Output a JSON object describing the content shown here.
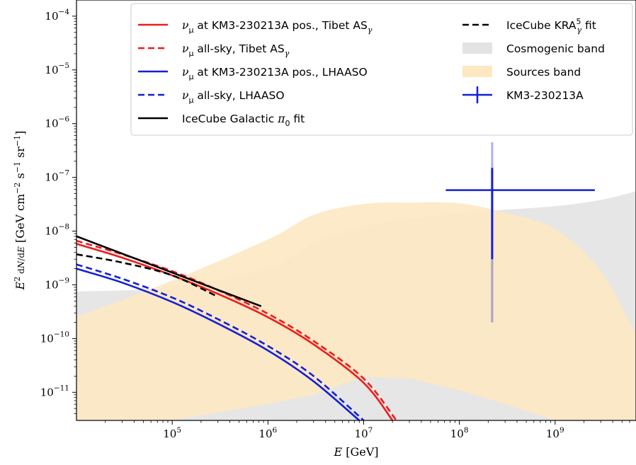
{
  "chart_data": {
    "type": "line",
    "x_scale": "log",
    "y_scale": "log",
    "xlim": [
      10000,
      7000000000
    ],
    "ylim": [
      3e-12,
      0.0002
    ],
    "xlabel": "E [GeV]",
    "ylabel": "E² dN/dE [GeV cm⁻² s⁻¹ sr⁻¹]",
    "x_ticks": [
      {
        "value": 100000,
        "label": "10",
        "exp": "5"
      },
      {
        "value": 1000000,
        "label": "10",
        "exp": "6"
      },
      {
        "value": 10000000,
        "label": "10",
        "exp": "7"
      },
      {
        "value": 100000000,
        "label": "10",
        "exp": "8"
      },
      {
        "value": 1000000000,
        "label": "10",
        "exp": "9"
      }
    ],
    "y_ticks": [
      {
        "value": 1e-11,
        "label": "10",
        "exp": "−11"
      },
      {
        "value": 1e-10,
        "label": "10",
        "exp": "−10"
      },
      {
        "value": 1e-09,
        "label": "10",
        "exp": "−9"
      },
      {
        "value": 1e-08,
        "label": "10",
        "exp": "−8"
      },
      {
        "value": 1e-07,
        "label": "10",
        "exp": "−7"
      },
      {
        "value": 1e-06,
        "label": "10",
        "exp": "−6"
      },
      {
        "value": 1e-05,
        "label": "10",
        "exp": "−5"
      },
      {
        "value": 0.0001,
        "label": "10",
        "exp": "−4"
      }
    ],
    "grid": false,
    "legend_position": "top-right",
    "bands": [
      {
        "name": "Cosmogenic band",
        "color": "#e3e3e3",
        "x": [
          10000,
          100000,
          1000000,
          3000000,
          10000000,
          30000000,
          100000000,
          300000000,
          1000000000,
          3000000000,
          7000000000
        ],
        "lower": [
          3e-12,
          3e-12,
          3e-12,
          3e-12,
          3e-12,
          3e-12,
          3e-12,
          3e-12,
          3e-12,
          3e-12,
          3e-12
        ],
        "upper": [
          7.5e-10,
          9e-10,
          2e-09,
          6e-09,
          1.2e-08,
          1.7e-08,
          2.1e-08,
          2.5e-08,
          2.9e-08,
          3.8e-08,
          5.5e-08
        ]
      },
      {
        "name": "Sources band",
        "color": "#fde8c2",
        "x": [
          10000,
          100000,
          1000000,
          3000000,
          10000000,
          30000000,
          100000000,
          300000000,
          1000000000,
          3000000000,
          7000000000
        ],
        "lower": [
          3e-12,
          3e-12,
          6e-12,
          9e-12,
          1.9e-11,
          1.8e-11,
          1.1e-11,
          6e-12,
          3e-12,
          3e-12,
          3e-12
        ],
        "upper": [
          2.5e-10,
          1.2e-09,
          7e-09,
          2e-08,
          3.2e-08,
          3.4e-08,
          3.3e-08,
          2.2e-08,
          1.1e-08,
          1.8e-09,
          1.2e-10
        ]
      }
    ],
    "series": [
      {
        "name": "νμ at KM3-230213A pos., Tibet ASγ",
        "color": "#ee1c1c",
        "dash": "solid",
        "x": [
          10000,
          30000,
          100000,
          300000,
          1000000,
          3000000,
          10000000,
          20000000
        ],
        "y": [
          5.8e-09,
          3.2e-09,
          1.5e-09,
          6.8e-10,
          2.5e-10,
          7.8e-11,
          1.5e-11,
          3e-12
        ]
      },
      {
        "name": "νμ all-sky, Tibet ASγ",
        "color": "#ee1c1c",
        "dash": "dashed",
        "x": [
          10000,
          30000,
          100000,
          300000,
          1000000,
          3000000,
          10000000,
          22000000
        ],
        "y": [
          6.6e-09,
          3.7e-09,
          1.8e-09,
          8e-10,
          2.9e-10,
          9e-11,
          1.8e-11,
          3e-12
        ]
      },
      {
        "name": "νμ at KM3-230213A pos., LHAASO",
        "color": "#1420d6",
        "dash": "solid",
        "x": [
          10000,
          30000,
          100000,
          300000,
          1000000,
          3000000,
          9000000
        ],
        "y": [
          2e-09,
          1.1e-09,
          4.8e-10,
          1.9e-10,
          6e-11,
          1.6e-11,
          3e-12
        ]
      },
      {
        "name": "νμ all-sky, LHAASO",
        "color": "#1420d6",
        "dash": "dashed",
        "x": [
          10000,
          30000,
          100000,
          300000,
          1000000,
          3000000,
          10000000
        ],
        "y": [
          2.4e-09,
          1.3e-09,
          5.8e-10,
          2.3e-10,
          7.3e-11,
          2e-11,
          3e-12
        ]
      },
      {
        "name": "IceCube Galactic π0 fit",
        "color": "#000000",
        "dash": "solid",
        "x": [
          10000,
          850000
        ],
        "y": [
          8e-09,
          4e-10
        ]
      },
      {
        "name": "IceCube KRA⁵γ fit",
        "color": "#000000",
        "dash": "dashed",
        "x": [
          10000,
          30000,
          100000,
          300000
        ],
        "y": [
          3.7e-09,
          2.6e-09,
          1.5e-09,
          6e-10
        ]
      }
    ],
    "points": [
      {
        "name": "KM3-230213A",
        "color": "#1420d6",
        "x": 220000000,
        "y": 5.8e-08,
        "x_err": [
          72000000,
          2600000000
        ],
        "y_err_1sigma": [
          3e-09,
          1.5e-07
        ],
        "y_err_2sigma": [
          2e-10,
          4.5e-07
        ]
      }
    ]
  },
  "legend": {
    "left": [
      {
        "key": "tibet-pos",
        "color": "#ee1c1c",
        "dash": "solid"
      },
      {
        "key": "tibet-all",
        "color": "#ee1c1c",
        "dash": "dashed"
      },
      {
        "key": "lhaaso-pos",
        "color": "#1420d6",
        "dash": "solid"
      },
      {
        "key": "lhaaso-all",
        "color": "#1420d6",
        "dash": "dashed"
      },
      {
        "key": "galactic",
        "color": "#000000",
        "dash": "solid"
      }
    ],
    "right": [
      {
        "key": "kra",
        "color": "#000000",
        "dash": "dashed"
      },
      {
        "key": "cosmo",
        "color": "#e3e3e3",
        "patch": true
      },
      {
        "key": "sources",
        "color": "#fde8c2",
        "patch": true
      },
      {
        "key": "km3",
        "color": "#1420d6",
        "marker": "errorbar"
      }
    ],
    "labels": {
      "nu": "ν",
      "mu": "μ",
      "at_pos": " at KM3-230213A pos., ",
      "all_sky": " all-sky, ",
      "tibet": "Tibet AS",
      "gamma": "γ",
      "lhaaso": "LHAASO",
      "galactic_prefix": "IceCube Galactic ",
      "pi": "π",
      "zero": "0",
      "galactic_suffix": " fit",
      "kra_prefix": "IceCube KRA",
      "kra_sup": "5",
      "kra_sub": "γ",
      "kra_suffix": " fit",
      "cosmo": "Cosmogenic band",
      "sources": "Sources band",
      "km3": "KM3-230213A"
    }
  }
}
